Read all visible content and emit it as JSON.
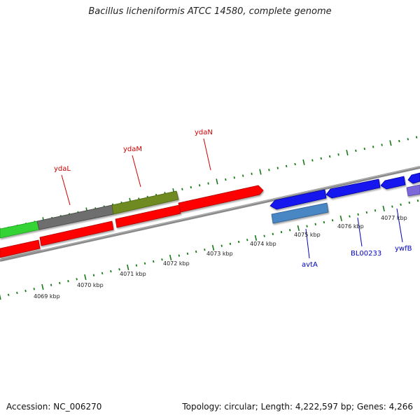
{
  "title": "Bacillus licheniformis ATCC 14580, complete genome",
  "footer": {
    "accession": "Accession: NC_006270",
    "summary": "Topology: circular; Length: 4,222,597 bp; Genes: 4,266"
  },
  "colors": {
    "forward_red": "#ff0000",
    "reverse_blue": "#1515ee",
    "steel_blue": "#4a86c4",
    "olive": "#6f8a22",
    "gray": "#707070",
    "green": "#35d435",
    "lavender": "#7b68d8",
    "backbone": "#8a8a8a",
    "tick_green": "#167a16",
    "label_red": "#cc0000",
    "label_blue": "#0000bb"
  },
  "scale": {
    "labels": [
      "4069 kbp",
      "4070 kbp",
      "4071 kbp",
      "4072 kbp",
      "4073 kbp",
      "4074 kbp",
      "4075 kbp",
      "4076 kbp",
      "4077 kbp"
    ]
  },
  "gene_labels": {
    "forward": [
      "ydaL",
      "ydaM",
      "ydaN"
    ],
    "reverse": [
      "avtA",
      "BL00233",
      "ywfB"
    ]
  }
}
